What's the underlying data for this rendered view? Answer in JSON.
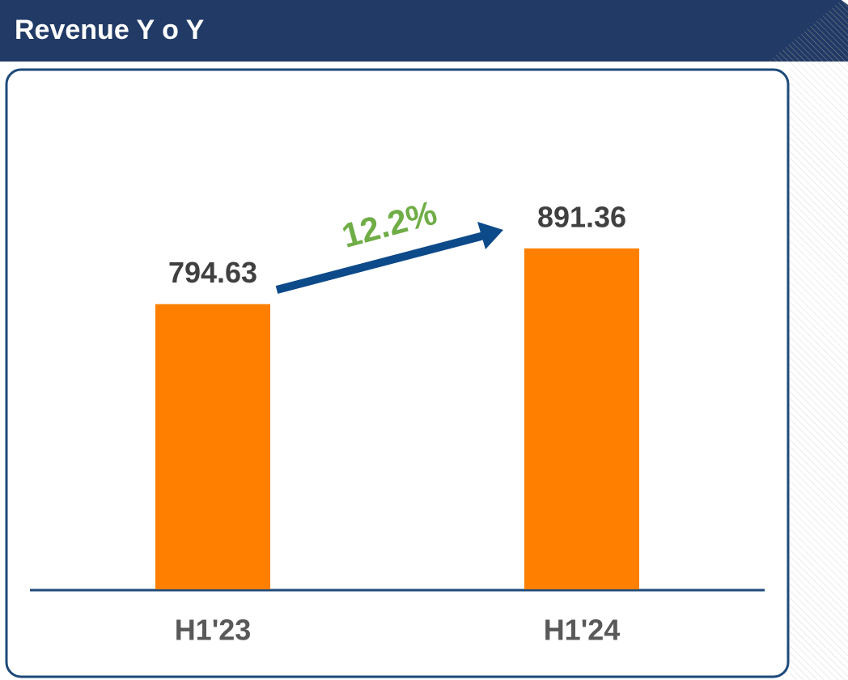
{
  "chart_data": {
    "type": "bar",
    "title": "Revenue Y o Y",
    "categories": [
      "H1'23",
      "H1'24"
    ],
    "values": [
      794.63,
      891.36
    ],
    "color": "#ff8000",
    "annotation": "12.2%",
    "ylim": [
      300,
      1200
    ]
  }
}
